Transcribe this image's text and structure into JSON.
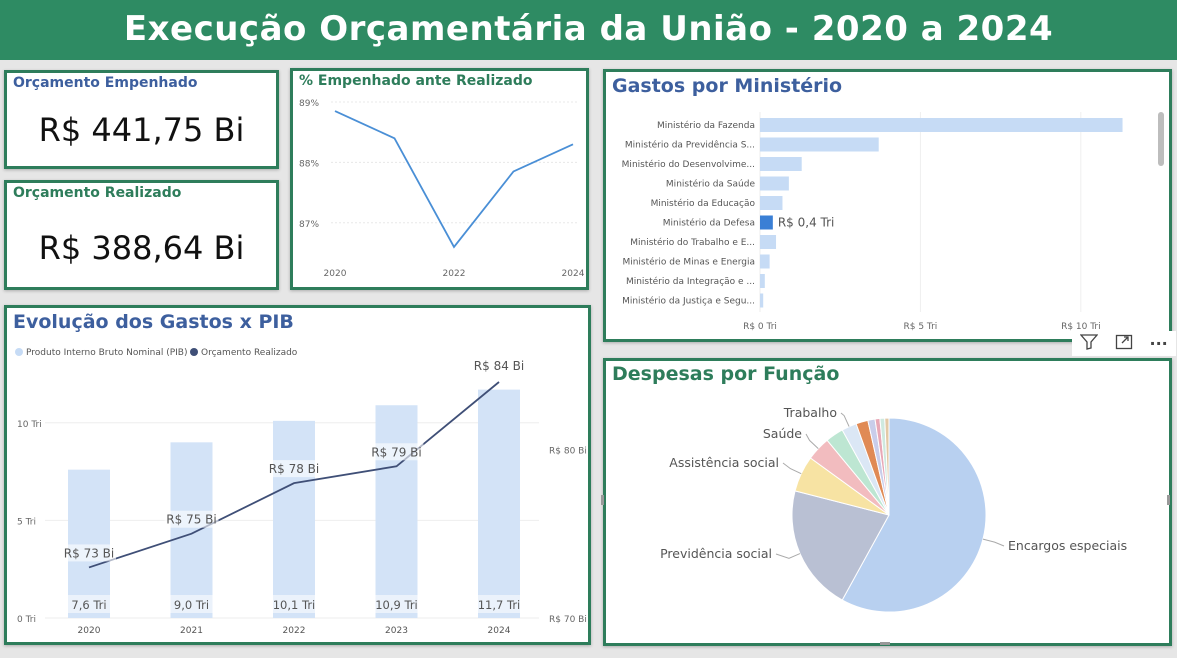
{
  "header": {
    "title": "Execução Orçamentária da União - 2020 a 2024"
  },
  "kpi_empenhado": {
    "title": "Orçamento Empenhado",
    "value": "R$ 441,75 Bi"
  },
  "kpi_realizado": {
    "title": "Orçamento Realizado",
    "value": "R$ 388,64 Bi"
  },
  "colors": {
    "header": "#2e8b63",
    "title_green": "#2e7d5b",
    "title_blue": "#3d5f9e",
    "line": "#4a8fd6",
    "bar_light": "#c6dbf5",
    "bar_highlight": "#3a7fd5",
    "line_dark": "#3f4f77"
  },
  "chart_data": [
    {
      "type": "line",
      "title": "% Empenhado ante Realizado",
      "x": [
        2020,
        2021,
        2022,
        2023,
        2024
      ],
      "x_tick_labels": [
        "2020",
        "2022",
        "2024"
      ],
      "values": [
        88.85,
        88.4,
        86.6,
        87.85,
        88.3
      ],
      "y_ticks": [
        "89%",
        "88%",
        "87%"
      ],
      "ylim": [
        86.5,
        89.1
      ]
    },
    {
      "type": "bar",
      "title": "Gastos por Ministério",
      "categories": [
        "Ministério da Fazenda",
        "Ministério da Previdência S...",
        "Ministério do Desenvolvime...",
        "Ministério da Saúde",
        "Ministério da Educação",
        "Ministério da Defesa",
        "Ministério do Trabalho e E...",
        "Ministério de Minas e Energia",
        "Ministério da Integração e ...",
        "Ministério da Justiça e Segu..."
      ],
      "values": [
        11.3,
        3.7,
        1.3,
        0.9,
        0.7,
        0.4,
        0.5,
        0.3,
        0.15,
        0.1
      ],
      "highlight_index": 5,
      "highlight_label": "R$ 0,4 Tri",
      "x_ticks": [
        0,
        5,
        10
      ],
      "x_tick_labels": [
        "R$ 0 Tri",
        "R$ 5 Tri",
        "R$ 10 Tri"
      ],
      "xlim": [
        0,
        12
      ]
    },
    {
      "type": "bar",
      "title": "Evolução dos Gastos x PIB",
      "legend": [
        "Produto Interno Bruto Nominal (PIB)",
        "Orçamento Realizado"
      ],
      "categories": [
        "2020",
        "2021",
        "2022",
        "2023",
        "2024"
      ],
      "series": [
        {
          "name": "Produto Interno Bruto Nominal (PIB)",
          "values": [
            7.6,
            9.0,
            10.1,
            10.9,
            11.7
          ],
          "labels": [
            "7,6 Tri",
            "9,0 Tri",
            "10,1 Tri",
            "10,9 Tri",
            "11,7 Tri"
          ]
        },
        {
          "name": "Orçamento Realizado",
          "values": [
            73,
            75,
            78,
            79,
            84
          ],
          "labels": [
            "R$ 73 Bi",
            "R$ 75 Bi",
            "R$ 78 Bi",
            "R$ 79 Bi",
            "R$ 84 Bi"
          ]
        }
      ],
      "y_left_ticks": [
        0,
        5,
        10
      ],
      "y_left_labels": [
        "0 Tri",
        "5 Tri",
        "10 Tri"
      ],
      "y_left_lim": [
        0,
        12.5
      ],
      "y_right_ticks": [
        70,
        80
      ],
      "y_right_labels": [
        "R$ 70 Bi",
        "R$ 80 Bi"
      ],
      "y_right_lim": [
        70,
        84
      ]
    },
    {
      "type": "pie",
      "title": "Despesas por Função",
      "slices": [
        {
          "label": "Encargos especiais",
          "value": 58,
          "color": "#b8d0f0"
        },
        {
          "label": "Previdência social",
          "value": 21,
          "color": "#b9c0d3"
        },
        {
          "label": "Assistência social",
          "value": 6,
          "color": "#f7e3a3"
        },
        {
          "label": "Saúde",
          "value": 4,
          "color": "#f2bcbf"
        },
        {
          "label": "",
          "value": 3,
          "color": "#bde6d2"
        },
        {
          "label": "Trabalho",
          "value": 2.5,
          "color": "#dbe7f5"
        },
        {
          "label": "",
          "value": 2,
          "color": "#e08a55"
        },
        {
          "label": "",
          "value": 1.2,
          "color": "#c9cdea"
        },
        {
          "label": "",
          "value": 0.8,
          "color": "#e8a8b6"
        },
        {
          "label": "",
          "value": 0.8,
          "color": "#cfe9df"
        },
        {
          "label": "",
          "value": 0.7,
          "color": "#e3c9a6"
        }
      ]
    }
  ],
  "toolbar": {
    "filter_icon": "filter-icon",
    "focus_icon": "focus-mode-icon",
    "more_icon": "more-options-icon",
    "more_label": "···"
  }
}
